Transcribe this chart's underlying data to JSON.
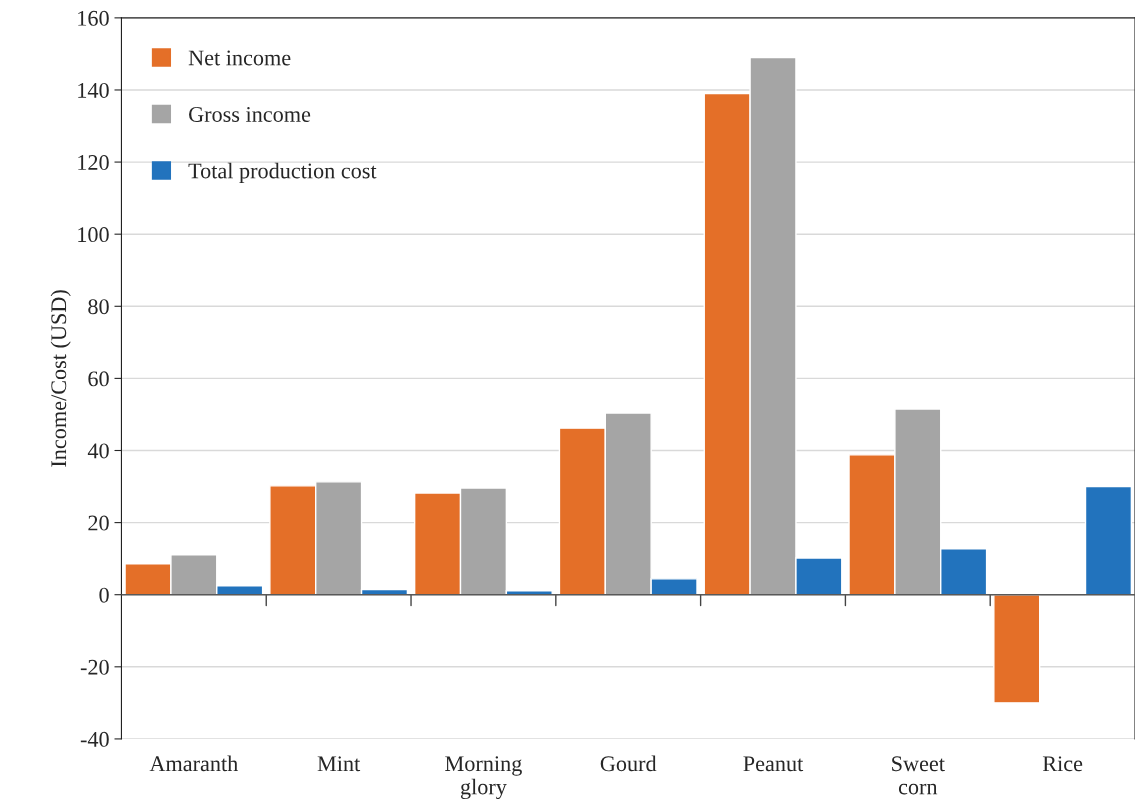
{
  "chart_data": {
    "type": "bar",
    "ylabel": "Income/Cost (USD)",
    "categories": [
      "Amaranth",
      "Mint",
      "Morning\nglory",
      "Gourd",
      "Peanut",
      "Sweet\ncorn",
      "Rice"
    ],
    "series": [
      {
        "name": "Net income",
        "color": "#e46f28",
        "values": [
          8.6,
          30.2,
          28.2,
          46.2,
          139,
          38.8,
          -30
        ]
      },
      {
        "name": "Gross income",
        "color": "#a5a5a5",
        "values": [
          11.1,
          31.3,
          29.6,
          50.4,
          149,
          51.5,
          null
        ]
      },
      {
        "name": "Total production cost",
        "color": "#2273bd",
        "values": [
          2.5,
          1.4,
          1.1,
          4.4,
          10.2,
          12.7,
          30
        ]
      }
    ],
    "ylim": [
      -40,
      160
    ],
    "yticks": [
      -40,
      -20,
      0,
      20,
      40,
      60,
      80,
      100,
      120,
      140,
      160
    ],
    "grid": "y",
    "legend": "top left"
  }
}
